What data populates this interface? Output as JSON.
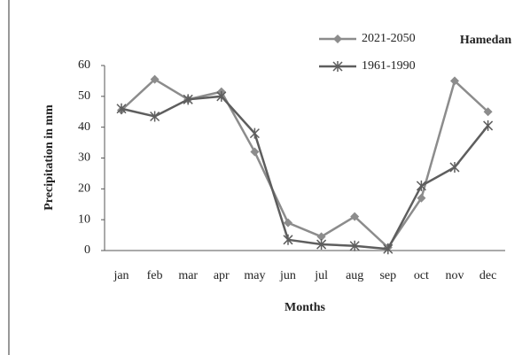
{
  "chart_data": {
    "type": "line",
    "annotation": "Hamedan",
    "xlabel": "Months",
    "ylabel": "Precipitation in mm",
    "categories": [
      "jan",
      "feb",
      "mar",
      "apr",
      "may",
      "jun",
      "jul",
      "aug",
      "sep",
      "oct",
      "nov",
      "dec"
    ],
    "series": [
      {
        "name": "2021-2050",
        "color": "#8c8c8c",
        "marker": "diamond",
        "values": [
          45.5,
          55.5,
          49,
          51.5,
          32,
          9,
          4.5,
          11,
          1,
          17,
          55,
          45
        ]
      },
      {
        "name": "1961-1990",
        "color": "#5e5e5e",
        "marker": "star",
        "values": [
          46,
          43.5,
          49,
          50,
          38,
          3.5,
          2,
          1.5,
          0.5,
          21,
          27,
          40.5
        ]
      }
    ],
    "ylim": [
      0,
      60
    ],
    "yticks": [
      0,
      10,
      20,
      30,
      40,
      50,
      60
    ],
    "grid": false
  }
}
